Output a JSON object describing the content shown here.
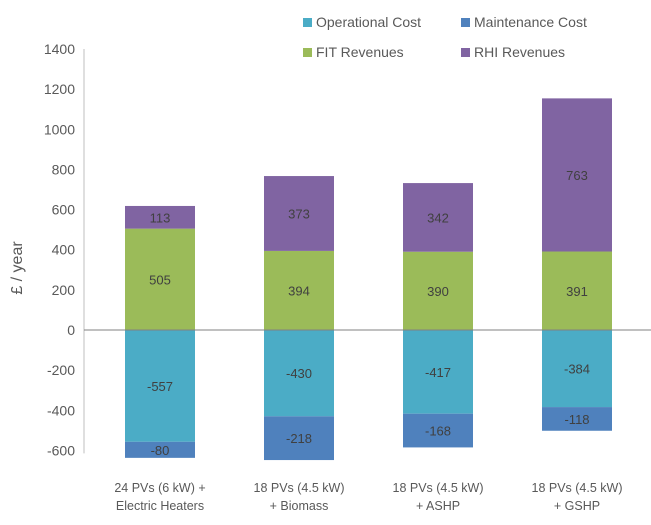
{
  "chart_data": {
    "type": "bar",
    "stacked": true,
    "title": "",
    "xlabel": "",
    "ylabel": "£ / year",
    "ylim": [
      -600,
      1400
    ],
    "yticks": [
      -600,
      -400,
      -200,
      0,
      200,
      400,
      600,
      800,
      1000,
      1200,
      1400
    ],
    "grid": false,
    "legend_position": "top-right",
    "categories": [
      [
        "24 PVs (6 kW) +",
        "Electric Heaters"
      ],
      [
        "18 PVs (4.5 kW)",
        "+ Biomass"
      ],
      [
        "18 PVs (4.5 kW)",
        "+ ASHP"
      ],
      [
        "18 PVs (4.5 kW)",
        "+ GSHP"
      ]
    ],
    "series": [
      {
        "name": "Operational Cost",
        "color": "#4BACC6",
        "values": [
          -557,
          -430,
          -417,
          -384
        ]
      },
      {
        "name": "Maintenance Cost",
        "color": "#4F81BD",
        "values": [
          -80,
          -218,
          -168,
          -118
        ]
      },
      {
        "name": "FIT Revenues",
        "color": "#9BBB59",
        "values": [
          505,
          394,
          390,
          391
        ]
      },
      {
        "name": "RHI Revenues",
        "color": "#8064A2",
        "values": [
          113,
          373,
          342,
          763
        ]
      }
    ]
  }
}
